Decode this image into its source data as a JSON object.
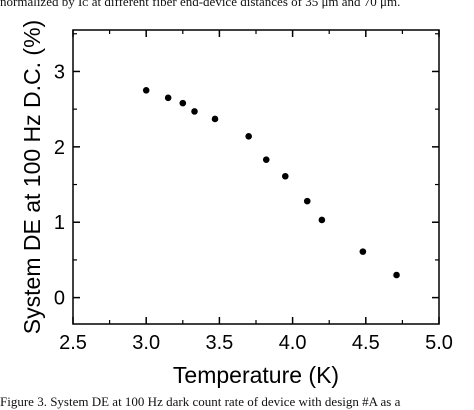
{
  "header_caption": "normalized by Iᴄ at different fiber end-device distances of 35 μm and 70 μm.",
  "footer_caption": "Figure 3. System DE at 100 Hz dark count rate of device with design #A as a",
  "chart_data": {
    "type": "scatter",
    "xlabel": "Temperature (K)",
    "ylabel": "System DE at 100 Hz D.C. (%)",
    "xlim": [
      2.5,
      5.0
    ],
    "ylim": [
      -0.35,
      3.55
    ],
    "x_ticks": [
      2.5,
      3.0,
      3.5,
      4.0,
      4.5,
      5.0
    ],
    "x_tick_labels": [
      "2.5",
      "3.0",
      "3.5",
      "4.0",
      "4.5",
      "5.0"
    ],
    "y_ticks": [
      0,
      1,
      2,
      3
    ],
    "y_tick_labels": [
      "0",
      "1",
      "2",
      "3"
    ],
    "grid": false,
    "legend": "none",
    "marker_color": "#000000",
    "series": [
      {
        "x": [
          3.0,
          3.15,
          3.25,
          3.33,
          3.47,
          3.7,
          3.82,
          3.95,
          4.1,
          4.2,
          4.48,
          4.71
        ],
        "y": [
          2.75,
          2.65,
          2.58,
          2.47,
          2.37,
          2.14,
          1.83,
          1.61,
          1.28,
          1.03,
          0.61,
          0.3
        ]
      }
    ]
  }
}
